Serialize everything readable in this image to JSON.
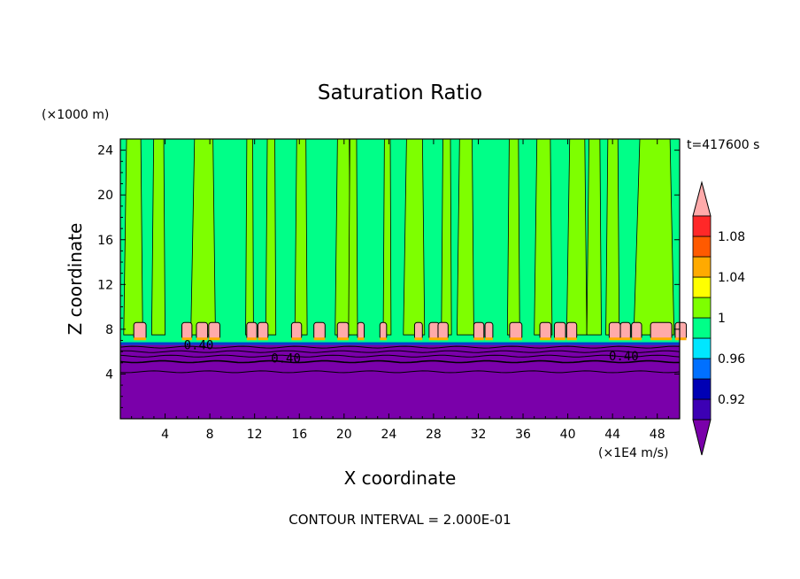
{
  "chart_data": {
    "type": "heatmap",
    "title": "Saturation Ratio",
    "xlabel": "X coordinate",
    "ylabel": "Z coordinate",
    "x_unit": "(×1E4 m/s)",
    "y_unit": "(×1000 m)",
    "time_label": "t=417600 s",
    "footer": "CONTOUR INTERVAL = 2.000E-01",
    "xlim": [
      0,
      50
    ],
    "ylim": [
      0,
      25
    ],
    "x_ticks": [
      4,
      8,
      12,
      16,
      20,
      24,
      28,
      32,
      36,
      40,
      44,
      48
    ],
    "y_ticks": [
      4,
      8,
      12,
      16,
      20,
      24
    ],
    "colorbar": {
      "levels": [
        {
          "lo": null,
          "hi": 0.9,
          "color": "#7a00aa"
        },
        {
          "lo": 0.9,
          "hi": 0.92,
          "color": "#3c00b4"
        },
        {
          "lo": 0.92,
          "hi": 0.94,
          "color": "#0000b4"
        },
        {
          "lo": 0.94,
          "hi": 0.96,
          "color": "#0070ff"
        },
        {
          "lo": 0.96,
          "hi": 0.98,
          "color": "#00e6ff"
        },
        {
          "lo": 0.98,
          "hi": 1.0,
          "color": "#00ff88"
        },
        {
          "lo": 1.0,
          "hi": 1.02,
          "color": "#7eff00"
        },
        {
          "lo": 1.02,
          "hi": 1.04,
          "color": "#ffff00"
        },
        {
          "lo": 1.04,
          "hi": 1.06,
          "color": "#ffaa00"
        },
        {
          "lo": 1.06,
          "hi": 1.08,
          "color": "#ff5a00"
        },
        {
          "lo": 1.08,
          "hi": 1.1,
          "color": "#ff2828"
        },
        {
          "lo": 1.1,
          "hi": null,
          "color": "#ffaaaa"
        }
      ],
      "tick_labels": [
        "1.08",
        "1.04",
        "1",
        "0.96",
        "0.92"
      ],
      "tick_values": [
        1.08,
        1.04,
        1.0,
        0.96,
        0.92
      ]
    },
    "contour_labels": [
      {
        "text": "0.40",
        "x": 14.8,
        "y": 5.4
      },
      {
        "text": "0.40",
        "x": 45.0,
        "y": 5.6
      },
      {
        "text": "0.40",
        "x": 7.0,
        "y": 6.6
      }
    ],
    "fields": {
      "lower_layer_top_z": 6.6,
      "lower_layer_value": 0.4,
      "upper_background_value": 0.99,
      "supersaturated_columns_x": [
        0.3,
        2.8,
        6.3,
        11.2,
        13.0,
        15.6,
        19.2,
        20.4,
        23.5,
        25.3,
        28.7,
        30.1,
        34.6,
        37.0,
        39.9,
        41.7,
        43.4,
        45.9
      ],
      "supersaturated_columns_width": [
        1.7,
        1.2,
        2.2,
        0.7,
        0.9,
        1.1,
        1.4,
        0.8,
        0.7,
        1.9,
        0.9,
        1.5,
        1.1,
        1.6,
        1.8,
        1.3,
        1.2,
        3.6
      ],
      "cloud_caps_x": [
        1.2,
        5.5,
        6.8,
        7.9,
        11.3,
        12.3,
        15.3,
        17.3,
        19.4,
        21.2,
        23.2,
        26.3,
        27.6,
        28.4,
        31.6,
        32.6,
        34.8,
        37.5,
        38.8,
        39.9,
        43.7,
        44.7,
        45.7,
        47.4,
        49.6
      ],
      "cloud_caps_width": [
        1.1,
        0.9,
        1.0,
        1.0,
        0.9,
        0.9,
        0.9,
        1.0,
        1.0,
        0.6,
        0.6,
        0.7,
        0.9,
        0.9,
        0.9,
        0.7,
        1.1,
        1.0,
        1.0,
        0.9,
        1.0,
        0.9,
        0.9,
        1.9,
        1.0
      ]
    }
  }
}
